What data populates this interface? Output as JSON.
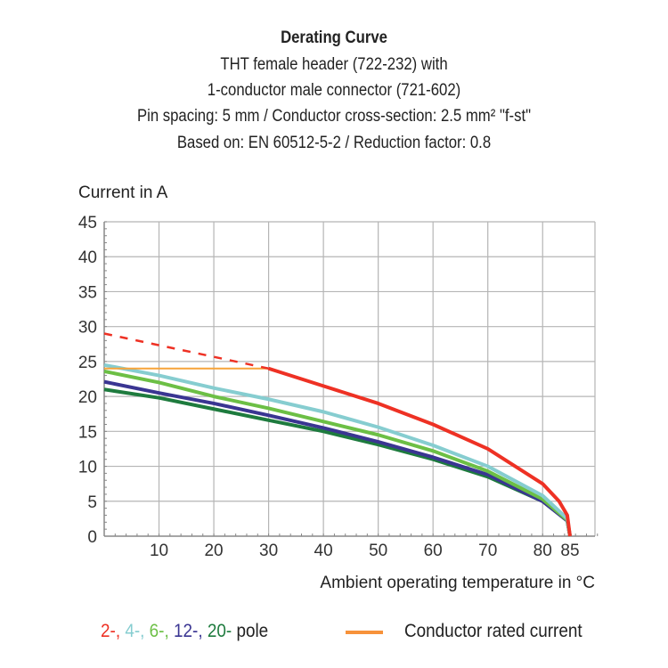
{
  "chart_data": {
    "type": "line",
    "title": "Derating Curve",
    "subtitle": [
      "THT female header  (722-232) with",
      "1-conductor male connector (721-602)",
      "Pin spacing: 5 mm / Conductor cross-section: 2.5 mm² \"f-st\"",
      "Based on: EN 60512-5-2 / Reduction factor: 0.8"
    ],
    "xlabel": "Ambient operating temperature in °C",
    "ylabel": "Current in A",
    "xlim": [
      0,
      85
    ],
    "ylim": [
      0,
      45
    ],
    "xticks": [
      10,
      20,
      30,
      40,
      50,
      60,
      70,
      80,
      85
    ],
    "yticks": [
      0,
      5,
      10,
      15,
      20,
      25,
      30,
      35,
      40,
      45
    ],
    "grid": true,
    "series": [
      {
        "name": "2-",
        "color": "#ee3124",
        "dashed_x": [
          0,
          30
        ],
        "dashed_y": [
          29,
          24
        ],
        "x": [
          30,
          40,
          50,
          60,
          70,
          80,
          83,
          84.5,
          85
        ],
        "y": [
          24,
          21.5,
          19,
          16,
          12.5,
          7.5,
          5,
          3,
          0
        ]
      },
      {
        "name": "4-",
        "color": "#86cdd0",
        "x": [
          0,
          10,
          20,
          30,
          40,
          50,
          60,
          70,
          80,
          84.5,
          85
        ],
        "y": [
          24.5,
          23,
          21.2,
          19.6,
          17.8,
          15.6,
          13,
          10,
          5.8,
          2.5,
          0
        ]
      },
      {
        "name": "6-",
        "color": "#6cbf45",
        "x": [
          0,
          10,
          20,
          30,
          40,
          50,
          60,
          70,
          80,
          84.5,
          85
        ],
        "y": [
          23.6,
          22,
          20,
          18.3,
          16.4,
          14.5,
          12.2,
          9.3,
          5.3,
          2.3,
          0
        ]
      },
      {
        "name": "12-",
        "color": "#3a3592",
        "x": [
          0,
          10,
          20,
          30,
          40,
          50,
          60,
          70,
          80,
          84.5,
          85
        ],
        "y": [
          22.1,
          20.5,
          19,
          17.3,
          15.5,
          13.5,
          11.3,
          8.8,
          5,
          2.2,
          0
        ]
      },
      {
        "name": "20-",
        "color": "#1e7b3e",
        "x": [
          0,
          10,
          20,
          30,
          40,
          50,
          60,
          70,
          80,
          84.5,
          85
        ],
        "y": [
          21,
          19.8,
          18.2,
          16.6,
          15,
          13.1,
          11,
          8.5,
          5,
          2.2,
          0
        ]
      },
      {
        "name": "Conductor rated current",
        "color": "#f7a43a",
        "x": [
          0,
          30
        ],
        "y": [
          24,
          24
        ]
      }
    ],
    "legend": {
      "poles_suffix": "pole",
      "rated_label": "Conductor rated current",
      "rated_color": "#f7923a",
      "placement": "bottom"
    }
  }
}
